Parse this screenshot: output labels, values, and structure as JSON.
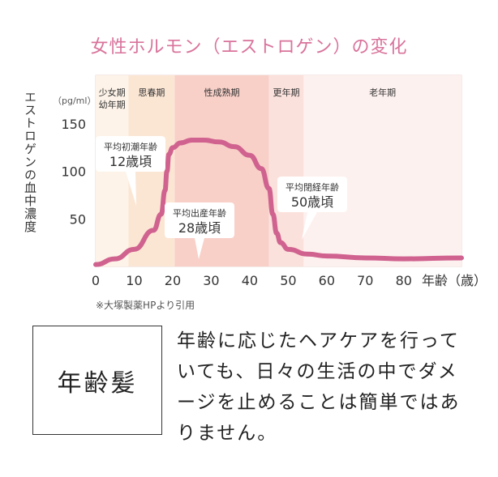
{
  "title": "女性ホルモン（エストロゲン）の変化",
  "ylabel": "エストロゲンの血中濃度",
  "unit": "（pg/ml）",
  "source": "※大塚製薬HPより引用",
  "box_label": "年齢髪",
  "description": "年齢に応じたヘアケアを行っていても、日々の生活の中でダメージを止めることは簡単ではありません。",
  "colors": {
    "title": "#d9739b",
    "curve": "#d0628f",
    "phase1": "#fdf3e8",
    "phase2": "#fbe6d4",
    "phase3": "#f8d0c8",
    "phase4": "#fbe1dc",
    "phase5": "#fdf1ef"
  },
  "chart_data": {
    "type": "line",
    "xlabel": "年齢（歳）",
    "xlim": [
      0,
      95
    ],
    "ylim": [
      0,
      170
    ],
    "x_ticks": [
      "0",
      "10",
      "20",
      "30",
      "40",
      "50",
      "60",
      "70",
      "80"
    ],
    "y_ticks": [
      "50",
      "100",
      "150"
    ],
    "phases": [
      {
        "label": "少女期\n幼年期",
        "from": 0,
        "to": 8.5
      },
      {
        "label": "思春期",
        "from": 8.5,
        "to": 20.5
      },
      {
        "label": "性成熟期",
        "from": 20.5,
        "to": 45
      },
      {
        "label": "更年期",
        "from": 45,
        "to": 54
      },
      {
        "label": "老年期",
        "from": 54,
        "to": 95
      }
    ],
    "series": [
      {
        "x": [
          0,
          5,
          10,
          15,
          17,
          18,
          18.5,
          19,
          20,
          22,
          25,
          28,
          32,
          36,
          40,
          43,
          45,
          46,
          47,
          48,
          50,
          55,
          60,
          70,
          80,
          95
        ],
        "y": [
          2,
          8,
          18,
          38,
          55,
          80,
          100,
          118,
          125,
          130,
          133,
          133,
          131,
          126,
          117,
          103,
          82,
          55,
          35,
          25,
          18,
          13,
          11,
          9,
          8,
          9
        ]
      }
    ],
    "annotations": [
      {
        "title": "平均初潮年齢",
        "value": "12歳頃",
        "x": 12
      },
      {
        "title": "平均出産年齢",
        "value": "28歳頃",
        "x": 28
      },
      {
        "title": "平均閉経年齢",
        "value": "50歳頃",
        "x": 50
      }
    ]
  }
}
